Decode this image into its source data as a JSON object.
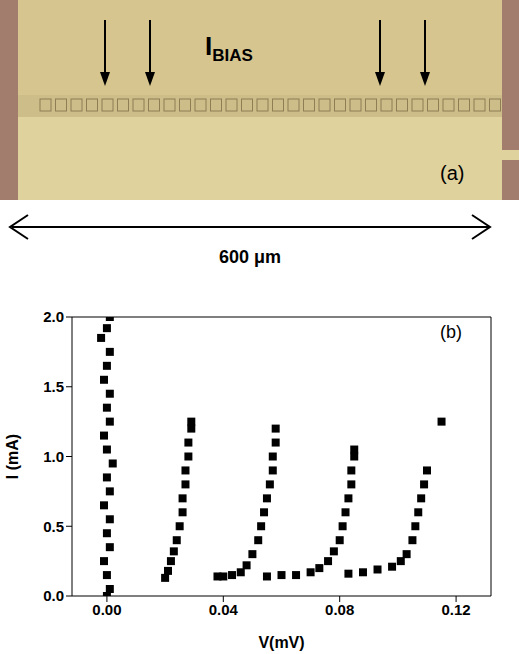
{
  "panel_a": {
    "letter": "(a)",
    "bias_label": {
      "main": "I",
      "sub": "BIAS"
    },
    "scale_bar": "600 μm"
  },
  "chart_data": {
    "type": "scatter",
    "annotations": [
      "(b)"
    ],
    "x_label": "V(mV)",
    "y_label": "I (mA)",
    "marker": "square",
    "color": "#000000",
    "xlim": [
      -0.012,
      0.132
    ],
    "xticks": [
      {
        "value": 0,
        "label": "0.00"
      },
      {
        "value": 0.04,
        "label": "0.04"
      },
      {
        "value": 0.08,
        "label": "0.08"
      },
      {
        "value": 0.12,
        "label": "0.12"
      }
    ],
    "ylim": [
      0,
      2
    ],
    "yticks": [
      {
        "value": 0,
        "label": "0.0"
      },
      {
        "value": 0.5,
        "label": "0.5"
      },
      {
        "value": 1,
        "label": "1.0"
      },
      {
        "value": 1.5,
        "label": "1.5"
      },
      {
        "value": 2,
        "label": "2.0"
      }
    ],
    "x": [
      0,
      0.001,
      0,
      -0.001,
      0.001,
      0,
      0.001,
      -0.001,
      0.001,
      0,
      0.002,
      0,
      -0.001,
      0.001,
      0,
      0.001,
      -0.001,
      0,
      0.001,
      -0.002,
      0,
      0.001,
      0.02,
      0.021,
      0.022,
      0.023,
      0.024,
      0.025,
      0.026,
      0.026,
      0.027,
      0.027,
      0.028,
      0.028,
      0.029,
      0.029,
      0.038,
      0.04,
      0.043,
      0.046,
      0.048,
      0.05,
      0.052,
      0.053,
      0.054,
      0.055,
      0.056,
      0.057,
      0.057,
      0.058,
      0.058,
      0.055,
      0.06,
      0.065,
      0.07,
      0.073,
      0.076,
      0.078,
      0.08,
      0.081,
      0.082,
      0.083,
      0.084,
      0.084,
      0.085,
      0.085,
      0.083,
      0.088,
      0.093,
      0.098,
      0.101,
      0.103,
      0.105,
      0.106,
      0.107,
      0.108,
      0.109,
      0.11,
      0.115
    ],
    "values": [
      0,
      0.05,
      0.15,
      0.25,
      0.35,
      0.45,
      0.55,
      0.65,
      0.75,
      0.85,
      0.95,
      1.05,
      1.15,
      1.25,
      1.35,
      1.45,
      1.55,
      1.65,
      1.75,
      1.85,
      1.92,
      2.0,
      0.13,
      0.18,
      0.25,
      0.32,
      0.4,
      0.5,
      0.6,
      0.7,
      0.8,
      0.9,
      1.0,
      1.1,
      1.2,
      1.25,
      0.14,
      0.14,
      0.15,
      0.17,
      0.22,
      0.3,
      0.4,
      0.5,
      0.6,
      0.7,
      0.8,
      0.9,
      1.0,
      1.1,
      1.2,
      0.14,
      0.15,
      0.15,
      0.17,
      0.2,
      0.25,
      0.32,
      0.4,
      0.5,
      0.6,
      0.7,
      0.8,
      0.9,
      1.0,
      1.05,
      0.16,
      0.17,
      0.19,
      0.21,
      0.25,
      0.3,
      0.4,
      0.5,
      0.6,
      0.7,
      0.8,
      0.9,
      1.25
    ]
  }
}
